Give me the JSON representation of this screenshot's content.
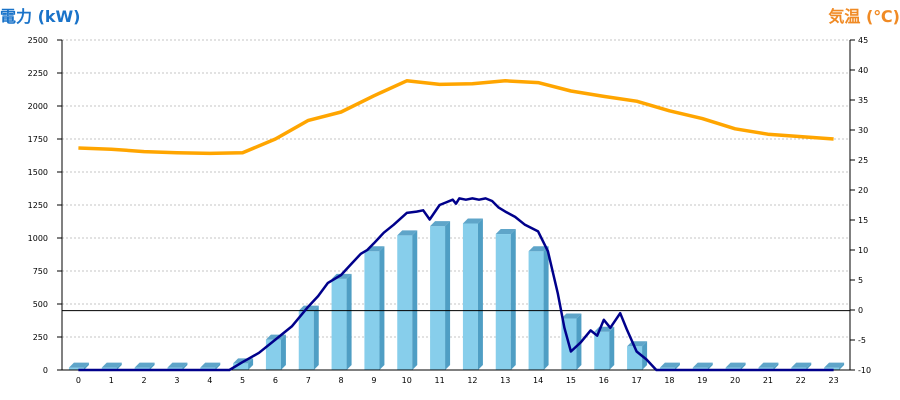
{
  "chart_data": {
    "type": "bar",
    "title_left": "電力 (kW)",
    "title_right": "気温 (℃)",
    "categories": [
      "0",
      "1",
      "2",
      "3",
      "4",
      "5",
      "6",
      "7",
      "8",
      "9",
      "10",
      "11",
      "12",
      "13",
      "14",
      "15",
      "16",
      "17",
      "18",
      "19",
      "20",
      "21",
      "22",
      "23"
    ],
    "y_left": {
      "min": 0,
      "max": 2500,
      "ticks": [
        0,
        250,
        500,
        750,
        1000,
        1250,
        1500,
        1750,
        2000,
        2250,
        2500
      ]
    },
    "y_right": {
      "min": -10,
      "max": 45,
      "ticks": [
        -10,
        -5,
        0,
        5,
        10,
        15,
        20,
        25,
        30,
        35,
        40,
        45
      ]
    },
    "zero_line_value": 450,
    "grid": true,
    "bars": [
      0,
      0,
      0,
      0,
      0,
      50,
      230,
      450,
      690,
      900,
      1020,
      1090,
      1110,
      1030,
      900,
      390,
      290,
      180,
      0,
      0,
      0,
      0,
      0,
      0
    ],
    "line_power": [
      [
        0,
        0
      ],
      [
        1,
        0
      ],
      [
        2,
        0
      ],
      [
        3,
        0
      ],
      [
        4,
        0
      ],
      [
        4.6,
        0
      ],
      [
        5,
        60
      ],
      [
        5.5,
        130
      ],
      [
        6,
        230
      ],
      [
        6.5,
        330
      ],
      [
        7,
        480
      ],
      [
        7.3,
        560
      ],
      [
        7.6,
        660
      ],
      [
        8,
        720
      ],
      [
        8.3,
        800
      ],
      [
        8.6,
        880
      ],
      [
        8.8,
        910
      ],
      [
        9,
        960
      ],
      [
        9.3,
        1040
      ],
      [
        9.6,
        1100
      ],
      [
        10,
        1190
      ],
      [
        10.3,
        1200
      ],
      [
        10.5,
        1210
      ],
      [
        10.7,
        1140
      ],
      [
        11,
        1250
      ],
      [
        11.2,
        1270
      ],
      [
        11.4,
        1290
      ],
      [
        11.5,
        1260
      ],
      [
        11.6,
        1300
      ],
      [
        11.8,
        1290
      ],
      [
        12,
        1300
      ],
      [
        12.2,
        1290
      ],
      [
        12.4,
        1300
      ],
      [
        12.6,
        1280
      ],
      [
        12.8,
        1230
      ],
      [
        13,
        1200
      ],
      [
        13.3,
        1160
      ],
      [
        13.6,
        1100
      ],
      [
        14,
        1050
      ],
      [
        14.3,
        900
      ],
      [
        14.6,
        580
      ],
      [
        14.8,
        320
      ],
      [
        15,
        140
      ],
      [
        15.3,
        210
      ],
      [
        15.6,
        300
      ],
      [
        15.8,
        260
      ],
      [
        16,
        380
      ],
      [
        16.2,
        320
      ],
      [
        16.5,
        430
      ],
      [
        16.7,
        310
      ],
      [
        17,
        140
      ],
      [
        17.3,
        80
      ],
      [
        17.6,
        0
      ],
      [
        18,
        0
      ],
      [
        23,
        0
      ]
    ],
    "series": [
      {
        "name": "",
        "values": [
          27,
          26.8,
          26.4,
          26.2,
          26.1,
          26.2,
          28.5,
          31.6,
          33,
          35.7,
          38.2,
          37.6,
          37.7,
          38.2,
          37.9,
          36.5,
          35.6,
          34.8,
          33.2,
          31.9,
          30.2,
          29.3,
          28.9,
          28.5
        ]
      }
    ],
    "colors": {
      "bar": "#87ceeb",
      "bar_side": "#4f9ec4",
      "bar_top": "#5fa5c9",
      "power_line": "#00008b",
      "temp_line": "#ffa500",
      "title_left": "#1a73c9",
      "title_right": "#f08a24"
    }
  }
}
